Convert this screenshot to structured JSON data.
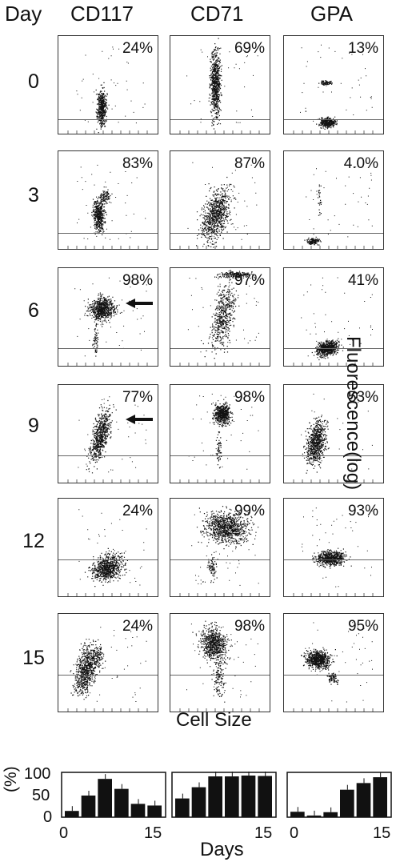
{
  "headers": {
    "day": "Day",
    "markers": [
      "CD117",
      "CD71",
      "GPA"
    ]
  },
  "days": [
    "0",
    "3",
    "6",
    "9",
    "12",
    "15"
  ],
  "percentages": [
    [
      "24%",
      "69%",
      "13%"
    ],
    [
      "83%",
      "87%",
      "4.0%"
    ],
    [
      "98%",
      "97%",
      "41%"
    ],
    [
      "77%",
      "98%",
      "53%"
    ],
    [
      "24%",
      "99%",
      "93%"
    ],
    [
      "24%",
      "98%",
      "95%"
    ]
  ],
  "axes": {
    "y_label": "Fluorescence(log)",
    "x_label": "Cell Size"
  },
  "bar_charts": {
    "y_axis_label": "(%)",
    "y_ticks": [
      "100",
      "50",
      "0"
    ],
    "x_label": "Days",
    "x_ticks": [
      "0",
      "15"
    ]
  },
  "chart_data": [
    {
      "type": "bar",
      "title": "",
      "xlabel": "Days",
      "ylabel": "(%)",
      "ylim": [
        0,
        100
      ],
      "categories": [
        "0",
        "3",
        "6",
        "9",
        "12",
        "15"
      ],
      "values": [
        15,
        52,
        92,
        68,
        32,
        28
      ]
    },
    {
      "type": "bar",
      "title": "",
      "xlabel": "Days",
      "ylabel": "(%)",
      "ylim": [
        0,
        100
      ],
      "categories": [
        "0",
        "3",
        "6",
        "9",
        "12",
        "15"
      ],
      "values": [
        45,
        72,
        98,
        98,
        100,
        99
      ]
    },
    {
      "type": "bar",
      "title": "",
      "xlabel": "Days",
      "ylabel": "(%)",
      "ylim": [
        0,
        100
      ],
      "categories": [
        "0",
        "3",
        "6",
        "9",
        "12",
        "15"
      ],
      "values": [
        13,
        4,
        12,
        66,
        82,
        96
      ]
    }
  ]
}
